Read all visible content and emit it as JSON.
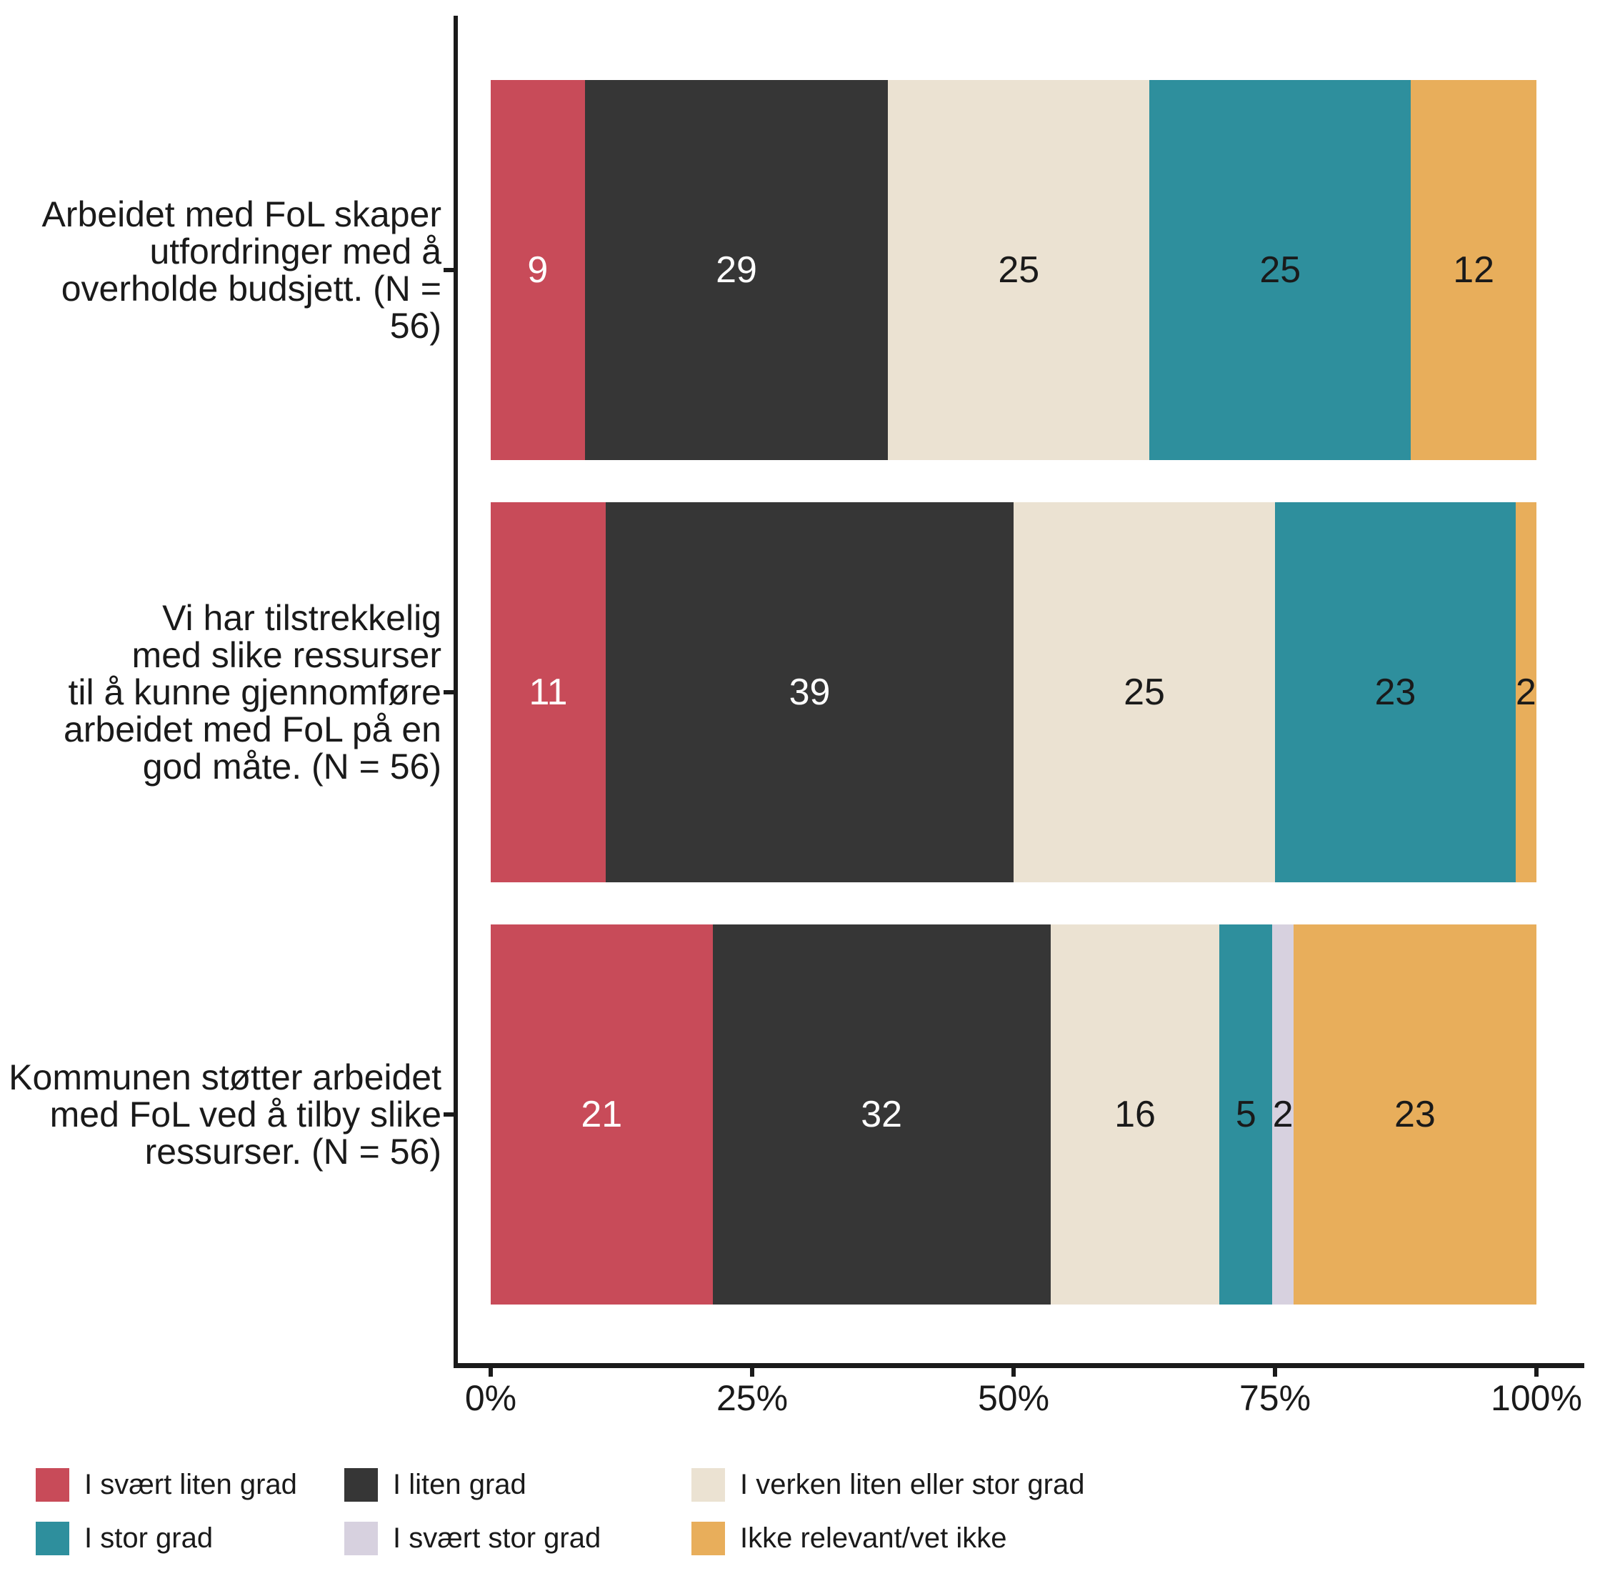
{
  "chart_data": {
    "type": "bar",
    "stacked": true,
    "orientation": "horizontal",
    "title": "",
    "unit": "%",
    "x_range": [
      0,
      100
    ],
    "x_ticks": [
      "0%",
      "25%",
      "50%",
      "75%",
      "100%"
    ],
    "grid": false,
    "legend_position": "bottom",
    "show_values": true,
    "categories": [
      {
        "lines": [
          "Arbeidet med FoL skaper",
          "utfordringer med å",
          "overholde budsjett. (N =",
          "56)"
        ]
      },
      {
        "lines": [
          "Vi har tilstrekkelig",
          "med slike ressurser",
          "til å kunne gjennomføre",
          "arbeidet med FoL på en",
          "god måte. (N = 56)"
        ]
      },
      {
        "lines": [
          "Kommunen støtter arbeidet",
          "med FoL ved å tilby slike",
          "ressurser. (N = 56)"
        ]
      }
    ],
    "series": [
      {
        "name": "I svært liten grad",
        "color": "#C84B59",
        "label_color": "#ffffff",
        "values": [
          9,
          11,
          21
        ]
      },
      {
        "name": "I liten grad",
        "color": "#363636",
        "label_color": "#ffffff",
        "values": [
          29,
          39,
          32
        ]
      },
      {
        "name": "I verken liten eller stor grad",
        "color": "#EBE2D2",
        "label_color": "#1a1a1a",
        "values": [
          25,
          25,
          16
        ]
      },
      {
        "name": "I stor grad",
        "color": "#2E8F9D",
        "label_color": "#1a1a1a",
        "values": [
          25,
          23,
          5
        ]
      },
      {
        "name": "I svært stor grad",
        "color": "#D7D1DF",
        "label_color": "#1a1a1a",
        "values": [
          0,
          0,
          2
        ]
      },
      {
        "name": "Ikke relevant/vet ikke",
        "color": "#E8AE5B",
        "label_color": "#1a1a1a",
        "values": [
          12,
          2,
          23
        ]
      }
    ],
    "axis_color": "#1a1a1a"
  }
}
